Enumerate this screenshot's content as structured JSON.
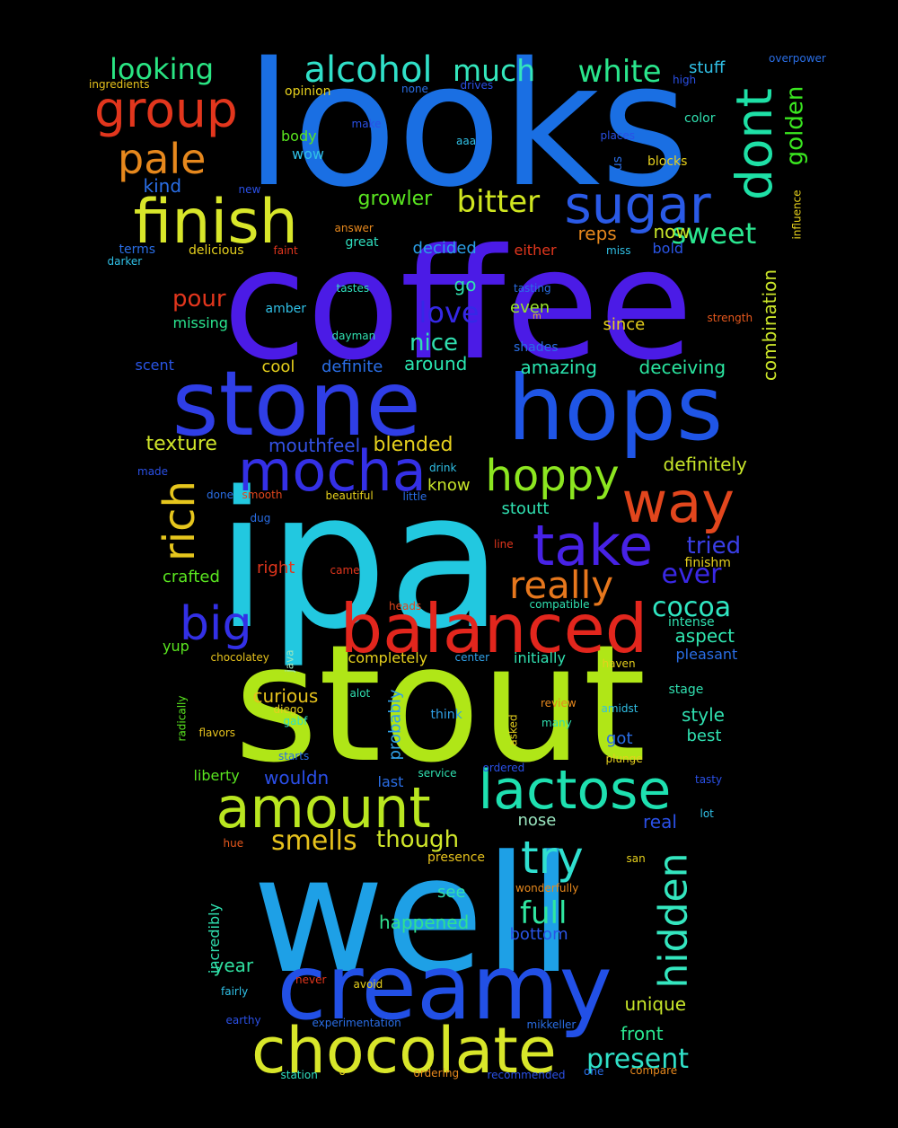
{
  "words": [
    {
      "text": "looks",
      "color": "#1a6fe3"
    },
    {
      "text": "coffee",
      "color": "#4b1be6"
    },
    {
      "text": "ipa",
      "color": "#22c8e0"
    },
    {
      "text": "stout",
      "color": "#b0e617"
    },
    {
      "text": "well",
      "color": "#1ea0e6"
    },
    {
      "text": "stone",
      "color": "#2f3ee6"
    },
    {
      "text": "hops",
      "color": "#1f55e6"
    },
    {
      "text": "creamy",
      "color": "#2250e6"
    },
    {
      "text": "balanced",
      "color": "#e2261d"
    },
    {
      "text": "chocolate",
      "color": "#d8e62a"
    },
    {
      "text": "mocha",
      "color": "#3430e6"
    },
    {
      "text": "amount",
      "color": "#b9e620"
    },
    {
      "text": "lactose",
      "color": "#1ee0b0"
    },
    {
      "text": "finish",
      "color": "#d8e62a"
    },
    {
      "text": "sugar",
      "color": "#2a5ae6"
    },
    {
      "text": "take",
      "color": "#4722e6"
    },
    {
      "text": "way",
      "color": "#e2461d"
    },
    {
      "text": "group",
      "color": "#e2361d"
    },
    {
      "text": "dont",
      "color": "#1ee0a6"
    },
    {
      "text": "hoppy",
      "color": "#8ce620"
    },
    {
      "text": "try",
      "color": "#30e0d0"
    },
    {
      "text": "big",
      "color": "#3330e6"
    },
    {
      "text": "rich",
      "color": "#e6c61d"
    },
    {
      "text": "hidden",
      "color": "#34e6bf"
    },
    {
      "text": "really",
      "color": "#e6771d"
    },
    {
      "text": "pale",
      "color": "#e6881d"
    },
    {
      "text": "alcohol",
      "color": "#30e0c8"
    },
    {
      "text": "bitter",
      "color": "#d0e620"
    },
    {
      "text": "white",
      "color": "#2ae68c"
    },
    {
      "text": "much",
      "color": "#34e6bc"
    },
    {
      "text": "looking",
      "color": "#2ae684"
    },
    {
      "text": "cocoa",
      "color": "#30e6c2"
    },
    {
      "text": "full",
      "color": "#30e6a0"
    },
    {
      "text": "smells",
      "color": "#e6c21d"
    },
    {
      "text": "sweet",
      "color": "#2ae690"
    },
    {
      "text": "love",
      "color": "#3528e6"
    },
    {
      "text": "ever",
      "color": "#3a28e6"
    },
    {
      "text": "present",
      "color": "#30e0c8"
    },
    {
      "text": "golden",
      "color": "#3ae620"
    },
    {
      "text": "pour",
      "color": "#e2361d"
    },
    {
      "text": "tried",
      "color": "#3a3ee6"
    },
    {
      "text": "nice",
      "color": "#30e0b0"
    },
    {
      "text": "though",
      "color": "#d0e62a"
    },
    {
      "text": "combination",
      "color": "#cce62a"
    },
    {
      "text": "growler",
      "color": "#5ae620"
    },
    {
      "text": "texture",
      "color": "#d0e62a"
    },
    {
      "text": "blended",
      "color": "#e6d01d"
    },
    {
      "text": "mouthfeel",
      "color": "#3452e6"
    },
    {
      "text": "definitely",
      "color": "#c8e62a"
    },
    {
      "text": "amazing",
      "color": "#2ae6b0"
    },
    {
      "text": "deceiving",
      "color": "#2ae6a0"
    },
    {
      "text": "aspect",
      "color": "#30e6b0"
    },
    {
      "text": "style",
      "color": "#30e0b0"
    },
    {
      "text": "wouldn",
      "color": "#2a4ee6"
    },
    {
      "text": "curious",
      "color": "#e6c21d"
    },
    {
      "text": "real",
      "color": "#2a50e6"
    },
    {
      "text": "happened",
      "color": "#30e090"
    },
    {
      "text": "bottom",
      "color": "#2a55e6"
    },
    {
      "text": "front",
      "color": "#2ae690"
    },
    {
      "text": "unique",
      "color": "#c8e62a"
    },
    {
      "text": "year",
      "color": "#30e0a0"
    },
    {
      "text": "around",
      "color": "#2ae6b0"
    },
    {
      "text": "definite",
      "color": "#2a6ee6"
    },
    {
      "text": "cool",
      "color": "#e6d01d"
    },
    {
      "text": "decided",
      "color": "#2a9ee6"
    },
    {
      "text": "reps",
      "color": "#e6881d"
    },
    {
      "text": "now",
      "color": "#c8e62a"
    },
    {
      "text": "go",
      "color": "#30e0b0"
    },
    {
      "text": "even",
      "color": "#9ae62a"
    },
    {
      "text": "since",
      "color": "#e6d01d"
    },
    {
      "text": "know",
      "color": "#c8e62a"
    },
    {
      "text": "stoutt",
      "color": "#30e0b0"
    },
    {
      "text": "right",
      "color": "#e2361d"
    },
    {
      "text": "crafted",
      "color": "#5ae620"
    },
    {
      "text": "kind",
      "color": "#2a6ee6"
    },
    {
      "text": "wow",
      "color": "#30c0e6"
    },
    {
      "text": "body",
      "color": "#5ae620"
    },
    {
      "text": "stuff",
      "color": "#30c0e6"
    },
    {
      "text": "missing",
      "color": "#2ae690"
    },
    {
      "text": "scent",
      "color": "#2a55e6"
    },
    {
      "text": "great",
      "color": "#30e0c0"
    },
    {
      "text": "terms",
      "color": "#2a6ee6"
    },
    {
      "text": "delicious",
      "color": "#e6d01d"
    },
    {
      "text": "bold",
      "color": "#2a55e6"
    },
    {
      "text": "either",
      "color": "#e2361d"
    },
    {
      "text": "us",
      "color": "#2a6ee6"
    },
    {
      "text": "nose",
      "color": "#9ae6c0"
    },
    {
      "text": "see",
      "color": "#30e0b0"
    },
    {
      "text": "got",
      "color": "#2a6ee6"
    },
    {
      "text": "best",
      "color": "#30e0b0"
    },
    {
      "text": "initially",
      "color": "#30e0b0"
    },
    {
      "text": "pleasant",
      "color": "#2a6ee6"
    },
    {
      "text": "completely",
      "color": "#e6d01d"
    },
    {
      "text": "probably",
      "color": "#30a0e6"
    },
    {
      "text": "incredibly",
      "color": "#30e0b0"
    },
    {
      "text": "liberty",
      "color": "#5ae620"
    },
    {
      "text": "last",
      "color": "#2a6ee6"
    },
    {
      "text": "intense",
      "color": "#30e0b0"
    },
    {
      "text": "finishm",
      "color": "#e6d01d"
    },
    {
      "text": "yup",
      "color": "#5ae620"
    },
    {
      "text": "stage",
      "color": "#30e0b0"
    },
    {
      "text": "opinion",
      "color": "#e6d01d"
    },
    {
      "text": "ingredients",
      "color": "#e6c21d"
    },
    {
      "text": "none",
      "color": "#2a6ee6"
    },
    {
      "text": "drives",
      "color": "#2a50e6"
    },
    {
      "text": "high",
      "color": "#2a50e6"
    },
    {
      "text": "overpower",
      "color": "#2a6ee6"
    },
    {
      "text": "make",
      "color": "#2a50e6"
    },
    {
      "text": "aaa",
      "color": "#30c0e6"
    },
    {
      "text": "places",
      "color": "#2a50e6"
    },
    {
      "text": "color",
      "color": "#30e0b0"
    },
    {
      "text": "blocks",
      "color": "#e6d01d"
    },
    {
      "text": "new",
      "color": "#2a50e6"
    },
    {
      "text": "influence",
      "color": "#e6d01d"
    },
    {
      "text": "answer",
      "color": "#e6881d"
    },
    {
      "text": "faint",
      "color": "#e2361d"
    },
    {
      "text": "miss",
      "color": "#30c0e6"
    },
    {
      "text": "darker",
      "color": "#30c0e6"
    },
    {
      "text": "tastes",
      "color": "#30e0c0"
    },
    {
      "text": "tasting",
      "color": "#2a6ee6"
    },
    {
      "text": "strength",
      "color": "#e6581d"
    },
    {
      "text": "amber",
      "color": "#30c0e6"
    },
    {
      "text": "m",
      "color": "#e6c21d"
    },
    {
      "text": "dayman",
      "color": "#30e0b0"
    },
    {
      "text": "shades",
      "color": "#2a6ee6"
    },
    {
      "text": "drink",
      "color": "#30c0e6"
    },
    {
      "text": "made",
      "color": "#2a50e6"
    },
    {
      "text": "done",
      "color": "#2a6ee6"
    },
    {
      "text": "smooth",
      "color": "#e2461d"
    },
    {
      "text": "beautiful",
      "color": "#e6d01d"
    },
    {
      "text": "little",
      "color": "#2a6ee6"
    },
    {
      "text": "dug",
      "color": "#2a6ee6"
    },
    {
      "text": "line",
      "color": "#e2361d"
    },
    {
      "text": "came",
      "color": "#e2361d"
    },
    {
      "text": "heads",
      "color": "#e2461d"
    },
    {
      "text": "compatible",
      "color": "#30e0b0"
    },
    {
      "text": "chocolatey",
      "color": "#e6c21d"
    },
    {
      "text": "java",
      "color": "#9ae6c0"
    },
    {
      "text": "center",
      "color": "#30a0e6"
    },
    {
      "text": "haven",
      "color": "#e6d01d"
    },
    {
      "text": "alot",
      "color": "#30e0b0"
    },
    {
      "text": "diego",
      "color": "#e6d01d"
    },
    {
      "text": "radically",
      "color": "#5ae620"
    },
    {
      "text": "gabf",
      "color": "#30e0c0"
    },
    {
      "text": "review",
      "color": "#e6881d"
    },
    {
      "text": "amidst",
      "color": "#30c0e6"
    },
    {
      "text": "asked",
      "color": "#e6d01d"
    },
    {
      "text": "many",
      "color": "#30e0b0"
    },
    {
      "text": "think",
      "color": "#30a0e6"
    },
    {
      "text": "flavors",
      "color": "#e6c21d"
    },
    {
      "text": "starts",
      "color": "#2a6ee6"
    },
    {
      "text": "plunge",
      "color": "#e6d01d"
    },
    {
      "text": "service",
      "color": "#30e0b0"
    },
    {
      "text": "ordered",
      "color": "#2a50e6"
    },
    {
      "text": "tasty",
      "color": "#2a50e6"
    },
    {
      "text": "lot",
      "color": "#30c0e6"
    },
    {
      "text": "hue",
      "color": "#e6581d"
    },
    {
      "text": "presence",
      "color": "#e6c21d"
    },
    {
      "text": "san",
      "color": "#e6d01d"
    },
    {
      "text": "wonderfully",
      "color": "#e6881d"
    },
    {
      "text": "never",
      "color": "#e2361d"
    },
    {
      "text": "avoid",
      "color": "#e6d01d"
    },
    {
      "text": "fairly",
      "color": "#30c0e6"
    },
    {
      "text": "earthy",
      "color": "#2a50e6"
    },
    {
      "text": "experimentation",
      "color": "#2a6ee6"
    },
    {
      "text": "mikkeller",
      "color": "#2a6ee6"
    },
    {
      "text": "station",
      "color": "#30e0c0"
    },
    {
      "text": "o",
      "color": "#e6d01d"
    },
    {
      "text": "ordering",
      "color": "#e6881d"
    },
    {
      "text": "recommended",
      "color": "#2a50e6"
    },
    {
      "text": "one",
      "color": "#2a6ee6"
    },
    {
      "text": "compare",
      "color": "#e6881d"
    }
  ]
}
